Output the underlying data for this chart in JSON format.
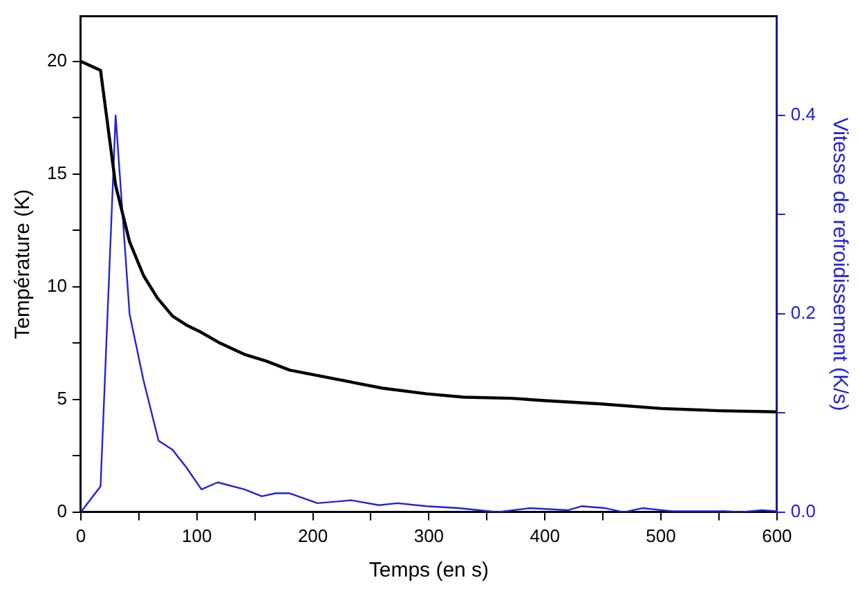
{
  "chart_data": {
    "type": "line",
    "xlabel": "Temps (en s)",
    "ylabel": "Température (K)",
    "y2label": "Vitesse de refroidissement (K/s)",
    "xlim": [
      0,
      600
    ],
    "xticks": [
      0,
      {
        "value": 50,
        "label": null
      },
      100,
      {
        "value": 150,
        "label": null
      },
      200,
      {
        "value": 250,
        "label": null
      },
      300,
      {
        "value": 350,
        "label": null
      },
      400,
      {
        "value": 450,
        "label": null
      },
      500,
      {
        "value": 550,
        "label": null
      },
      600
    ],
    "ylim": [
      0,
      22
    ],
    "yticks": [
      0,
      {
        "value": 2.5,
        "label": null
      },
      5,
      {
        "value": 7.5,
        "label": null
      },
      10,
      {
        "value": 12.5,
        "label": null
      },
      15,
      {
        "value": 17.5,
        "label": null
      },
      20
    ],
    "y2lim": [
      0,
      0.5
    ],
    "y2ticks": [
      {
        "value": 0,
        "label": "0.0"
      },
      {
        "value": 0.1,
        "label": null
      },
      0.2,
      {
        "value": 0.3,
        "label": null
      },
      0.4
    ],
    "grid": false,
    "legend": false,
    "marker": "none",
    "line_style": "solid",
    "series": [
      {
        "color": "#000000",
        "x": [
          0,
          17,
          30,
          42,
          54,
          66,
          79,
          91,
          103,
          120,
          141,
          160,
          180,
          200,
          235,
          260,
          298,
          330,
          371,
          400,
          448,
          500,
          550,
          600
        ],
        "values": [
          20,
          19.6,
          14.5,
          12.0,
          10.5,
          9.5,
          8.7,
          8.3,
          8.0,
          7.5,
          7.0,
          6.7,
          6.3,
          6.1,
          5.75,
          5.5,
          5.25,
          5.1,
          5.05,
          4.95,
          4.8,
          4.6,
          4.5,
          4.45
        ]
      },
      {
        "color": "#2020e0",
        "axis": "y2",
        "x": [
          0,
          17,
          30,
          42,
          54,
          67,
          79,
          91,
          104,
          118,
          141,
          156,
          168,
          180,
          204,
          233,
          257,
          273,
          298,
          326,
          359,
          387,
          420,
          432,
          452,
          468,
          484,
          509,
          555,
          570,
          587,
          600
        ],
        "values": [
          0,
          0.026,
          0.4,
          0.2,
          0.133,
          0.072,
          0.063,
          0.045,
          0.023,
          0.03,
          0.023,
          0.016,
          0.019,
          0.019,
          0.009,
          0.012,
          0.007,
          0.009,
          0.006,
          0.004,
          0,
          0.004,
          0.002,
          0.006,
          0.004,
          0,
          0.004,
          0.001,
          0.001,
          0,
          0.002,
          0.001
        ]
      }
    ]
  }
}
